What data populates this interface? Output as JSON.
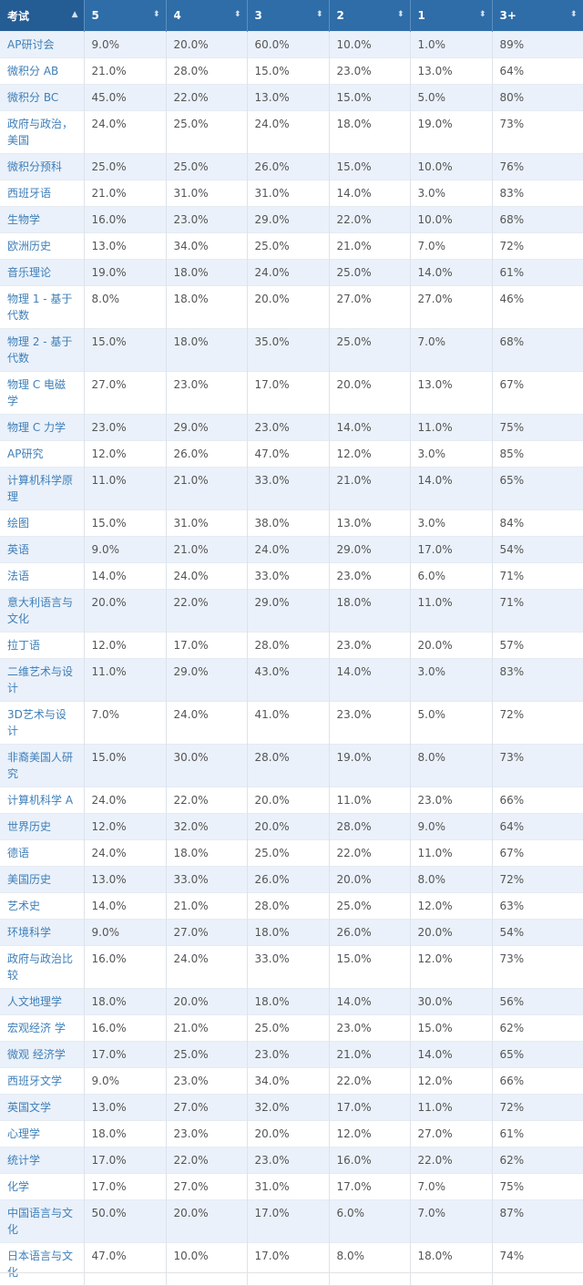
{
  "header": [
    "考试",
    "5",
    "4",
    "3",
    "2",
    "1",
    "3+"
  ],
  "sort_icons": [
    "sort-asc-icon",
    "sort-icon",
    "sort-icon",
    "sort-icon",
    "sort-icon",
    "sort-icon",
    "sort-icon"
  ],
  "colors": {
    "header_bg": "#2e6da8",
    "row_alt": "#eaf1fa",
    "name_text": "#3f7fb8"
  },
  "rows": [
    [
      "AP研讨会",
      "9.0%",
      "20.0%",
      "60.0%",
      "10.0%",
      "1.0%",
      "89%"
    ],
    [
      "微积分 AB",
      "21.0%",
      "28.0%",
      "15.0%",
      "23.0%",
      "13.0%",
      "64%"
    ],
    [
      "微积分 BC",
      "45.0%",
      "22.0%",
      "13.0%",
      "15.0%",
      "5.0%",
      "80%"
    ],
    [
      "政府与政治，美国",
      "24.0%",
      "25.0%",
      "24.0%",
      "18.0%",
      "19.0%",
      "73%"
    ],
    [
      "微积分预科",
      "25.0%",
      "25.0%",
      "26.0%",
      "15.0%",
      "10.0%",
      "76%"
    ],
    [
      "西班牙语",
      "21.0%",
      "31.0%",
      "31.0%",
      "14.0%",
      "3.0%",
      "83%"
    ],
    [
      "生物学",
      "16.0%",
      "23.0%",
      "29.0%",
      "22.0%",
      "10.0%",
      "68%"
    ],
    [
      "欧洲历史",
      "13.0%",
      "34.0%",
      "25.0%",
      "21.0%",
      "7.0%",
      "72%"
    ],
    [
      "音乐理论",
      "19.0%",
      "18.0%",
      "24.0%",
      "25.0%",
      "14.0%",
      "61%"
    ],
    [
      "物理 1 - 基于代数",
      "8.0%",
      "18.0%",
      "20.0%",
      "27.0%",
      "27.0%",
      "46%"
    ],
    [
      "物理 2 - 基于代数",
      "15.0%",
      "18.0%",
      "35.0%",
      "25.0%",
      "7.0%",
      "68%"
    ],
    [
      "物理 C 电磁学",
      "27.0%",
      "23.0%",
      "17.0%",
      "20.0%",
      "13.0%",
      "67%"
    ],
    [
      "物理 C 力学",
      "23.0%",
      "29.0%",
      "23.0%",
      "14.0%",
      "11.0%",
      "75%"
    ],
    [
      "AP研究",
      "12.0%",
      "26.0%",
      "47.0%",
      "12.0%",
      "3.0%",
      "85%"
    ],
    [
      "计算机科学原理",
      "11.0%",
      "21.0%",
      "33.0%",
      "21.0%",
      "14.0%",
      "65%"
    ],
    [
      "绘图",
      "15.0%",
      "31.0%",
      "38.0%",
      "13.0%",
      "3.0%",
      "84%"
    ],
    [
      "英语",
      "9.0%",
      "21.0%",
      "24.0%",
      "29.0%",
      "17.0%",
      "54%"
    ],
    [
      "法语",
      "14.0%",
      "24.0%",
      "33.0%",
      "23.0%",
      "6.0%",
      "71%"
    ],
    [
      "意大利语言与文化",
      "20.0%",
      "22.0%",
      "29.0%",
      "18.0%",
      "11.0%",
      "71%"
    ],
    [
      "拉丁语",
      "12.0%",
      "17.0%",
      "28.0%",
      "23.0%",
      "20.0%",
      "57%"
    ],
    [
      "二维艺术与设计",
      "11.0%",
      "29.0%",
      "43.0%",
      "14.0%",
      "3.0%",
      "83%"
    ],
    [
      "3D艺术与设计",
      "7.0%",
      "24.0%",
      "41.0%",
      "23.0%",
      "5.0%",
      "72%"
    ],
    [
      "非裔美国人研究",
      "15.0%",
      "30.0%",
      "28.0%",
      "19.0%",
      "8.0%",
      "73%"
    ],
    [
      "计算机科学 A",
      "24.0%",
      "22.0%",
      "20.0%",
      "11.0%",
      "23.0%",
      "66%"
    ],
    [
      "世界历史",
      "12.0%",
      "32.0%",
      "20.0%",
      "28.0%",
      "9.0%",
      "64%"
    ],
    [
      "德语",
      "24.0%",
      "18.0%",
      "25.0%",
      "22.0%",
      "11.0%",
      "67%"
    ],
    [
      "美国历史",
      "13.0%",
      "33.0%",
      "26.0%",
      "20.0%",
      "8.0%",
      "72%"
    ],
    [
      "艺术史",
      "14.0%",
      "21.0%",
      "28.0%",
      "25.0%",
      "12.0%",
      "63%"
    ],
    [
      "环境科学",
      "9.0%",
      "27.0%",
      "18.0%",
      "26.0%",
      "20.0%",
      "54%"
    ],
    [
      "政府与政治比较",
      "16.0%",
      "24.0%",
      "33.0%",
      "15.0%",
      "12.0%",
      "73%"
    ],
    [
      "人文地理学",
      "18.0%",
      "20.0%",
      "18.0%",
      "14.0%",
      "30.0%",
      "56%"
    ],
    [
      "宏观经济 学",
      "16.0%",
      "21.0%",
      "25.0%",
      "23.0%",
      "15.0%",
      "62%"
    ],
    [
      "微观 经济学",
      "17.0%",
      "25.0%",
      "23.0%",
      "21.0%",
      "14.0%",
      "65%"
    ],
    [
      "西班牙文学",
      "9.0%",
      "23.0%",
      "34.0%",
      "22.0%",
      "12.0%",
      "66%"
    ],
    [
      "英国文学",
      "13.0%",
      "27.0%",
      "32.0%",
      "17.0%",
      "11.0%",
      "72%"
    ],
    [
      "心理学",
      "18.0%",
      "23.0%",
      "20.0%",
      "12.0%",
      "27.0%",
      "61%"
    ],
    [
      "统计学",
      "17.0%",
      "22.0%",
      "23.0%",
      "16.0%",
      "22.0%",
      "62%"
    ],
    [
      "化学",
      "17.0%",
      "27.0%",
      "31.0%",
      "17.0%",
      "7.0%",
      "75%"
    ],
    [
      "中国语言与文化",
      "50.0%",
      "20.0%",
      "17.0%",
      "6.0%",
      "7.0%",
      "87%"
    ],
    [
      "日本语言与文化",
      "47.0%",
      "10.0%",
      "17.0%",
      "8.0%",
      "18.0%",
      "74%"
    ]
  ]
}
